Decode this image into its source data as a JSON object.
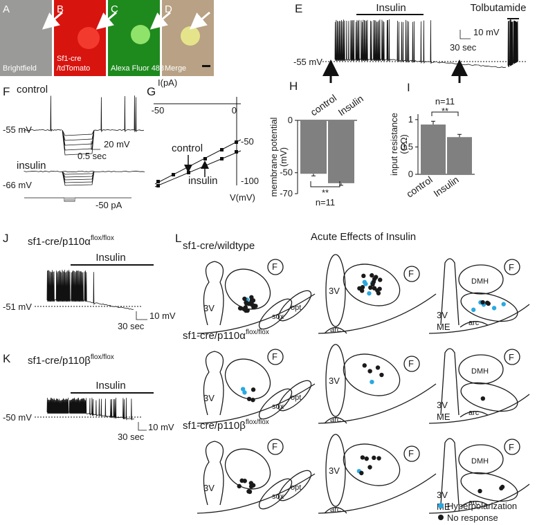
{
  "panels": {
    "A": {
      "letter": "A",
      "caption": [
        "Brightfield"
      ]
    },
    "B": {
      "letter": "B",
      "caption": [
        "Sf1-cre",
        "/tdTomato"
      ]
    },
    "C": {
      "letter": "C",
      "caption": [
        "Alexa Fluor 488"
      ]
    },
    "D": {
      "letter": "D",
      "caption": [
        "Merge"
      ]
    },
    "E": {
      "letter": "E",
      "drug1": "Insulin",
      "drug2": "Tolbutamide",
      "scale_v": "10 mV",
      "scale_t": "30 sec",
      "baseline": "-55 mV"
    },
    "F": {
      "letter": "F",
      "control": "control",
      "baseline1": "-55 mV",
      "scale_v": "20 mV",
      "scale_t": "0.5 sec",
      "insulin": "insulin",
      "baseline2": "-66 mV",
      "current": "-50 pA"
    },
    "G": {
      "letter": "G",
      "y_label": "I(pA)",
      "x_tick1": "-50",
      "x_tick2": "0",
      "y_tick1": "-50",
      "y_tick2": "-100",
      "x_label": "V(mV)",
      "control": "control",
      "insulin": "insulin"
    },
    "J": {
      "letter": "J",
      "genotype": "sf1-cre/p110α",
      "sup": "flox/flox",
      "drug": "Insulin",
      "baseline": "-51 mV",
      "scale_v": "10 mV",
      "scale_t": "30 sec"
    },
    "K": {
      "letter": "K",
      "genotype": "sf1-cre/p110β",
      "sup": "flox/flox",
      "drug": "Insulin",
      "baseline": "-50 mV",
      "scale_v": "10 mV",
      "scale_t": "30 sec"
    },
    "L": {
      "letter": "L",
      "title": "Acute Effects of Insulin",
      "rows": [
        {
          "genotype": "sf1-cre/wildtype"
        },
        {
          "genotype": "sf1-cre/p110α",
          "sup": "flox/flox"
        },
        {
          "genotype": "sf1-cre/p110β",
          "sup": "flox/flox"
        }
      ],
      "diagram_labels": [
        [
          "3V",
          "sox",
          "opt",
          "F"
        ],
        [
          "3V",
          "F",
          "arc"
        ],
        [
          "DMH",
          "F",
          "3V",
          "ME",
          "arc"
        ]
      ],
      "legend": [
        {
          "name": "Hyperpolarization",
          "color": "#29a9e0"
        },
        {
          "name": "No response",
          "color": "#1a1a1a"
        }
      ]
    }
  },
  "charts": {
    "H": {
      "type": "bar",
      "letter": "H",
      "y_label": [
        "membrane potential",
        "(mV)"
      ],
      "categories": [
        "control",
        "Insulin"
      ],
      "values": [
        -51,
        -60
      ],
      "errors": [
        2,
        2
      ],
      "ylim": [
        -70,
        0
      ],
      "yticks": [
        0,
        -50,
        -70
      ],
      "significance": "**",
      "n": "n=11",
      "color": "#808080"
    },
    "I": {
      "type": "bar",
      "letter": "I",
      "y_label": [
        "input resistance",
        "(GΩ)"
      ],
      "categories": [
        "control",
        "Insulin"
      ],
      "values": [
        0.91,
        0.68
      ],
      "errors": [
        0.06,
        0.05
      ],
      "ylim": [
        0,
        1.1
      ],
      "yticks": [
        0,
        0.5,
        1
      ],
      "significance": "**",
      "n": "n=11",
      "color": "#808080"
    }
  }
}
